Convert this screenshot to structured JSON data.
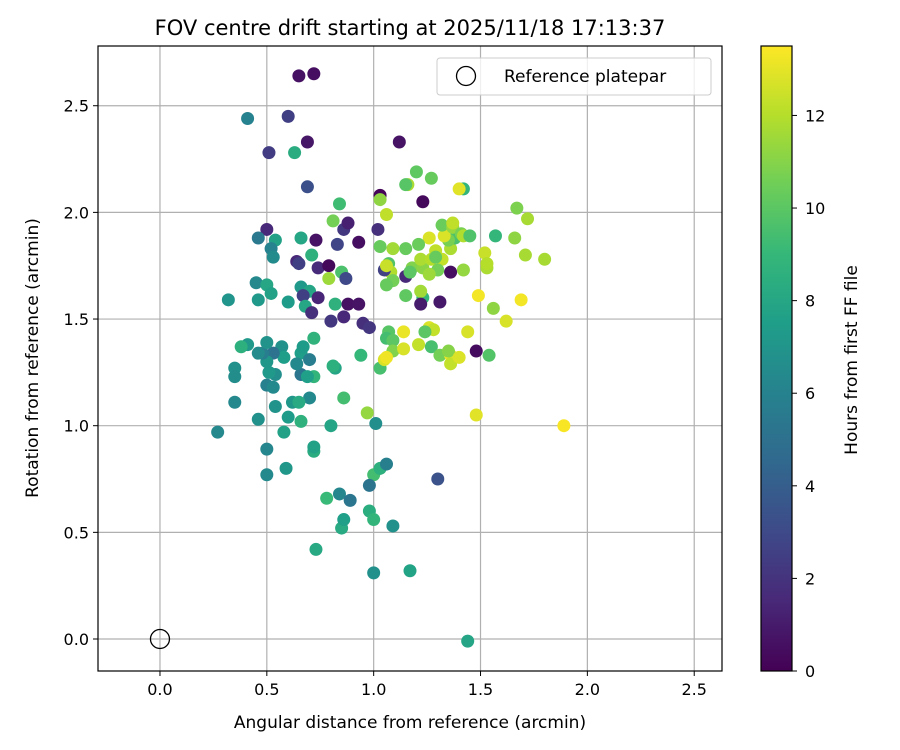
{
  "chart_data": {
    "type": "scatter",
    "title": "FOV centre drift starting at 2025/11/18 17:13:37",
    "xlabel": "Angular distance from reference (arcmin)",
    "ylabel": "Rotation from reference (arcmin)",
    "xlim": [
      -0.29,
      2.63
    ],
    "ylim": [
      -0.15,
      2.78
    ],
    "xticks": [
      0.0,
      0.5,
      1.0,
      1.5,
      2.0,
      2.5
    ],
    "xtick_labels": [
      "0.0",
      "0.5",
      "1.0",
      "1.5",
      "2.0",
      "2.5"
    ],
    "yticks": [
      0.0,
      0.5,
      1.0,
      1.5,
      2.0,
      2.5
    ],
    "ytick_labels": [
      "0.0",
      "0.5",
      "1.0",
      "1.5",
      "2.0",
      "2.5"
    ],
    "grid": true,
    "legend": {
      "placement": "top-right",
      "label": "Reference platepar"
    },
    "reference_point": {
      "x": 0.0,
      "y": 0.0
    },
    "colorbar": {
      "label": "Hours from first FF file",
      "range": [
        0,
        13.5
      ],
      "ticks": [
        0,
        2,
        4,
        6,
        8,
        10,
        12
      ],
      "tick_labels": [
        "0",
        "2",
        "4",
        "6",
        "8",
        "10",
        "12"
      ],
      "colormap": "viridis",
      "colors": [
        "#440154",
        "#482878",
        "#3e4a89",
        "#31688e",
        "#26828e",
        "#1f9e89",
        "#35b779",
        "#6ece58",
        "#b5de2b",
        "#fde725"
      ]
    },
    "points": [
      [
        0.65,
        2.64,
        0.6
      ],
      [
        0.72,
        2.65,
        0.5
      ],
      [
        0.6,
        2.45,
        2.5
      ],
      [
        0.41,
        2.44,
        6.0
      ],
      [
        0.51,
        2.28,
        2.4
      ],
      [
        0.63,
        2.28,
        8.3
      ],
      [
        0.69,
        2.33,
        0.8
      ],
      [
        0.69,
        2.12,
        3.3
      ],
      [
        1.12,
        2.33,
        0.7
      ],
      [
        0.84,
        2.04,
        9.3
      ],
      [
        0.81,
        1.96,
        10.6
      ],
      [
        0.86,
        1.92,
        2.2
      ],
      [
        0.88,
        1.95,
        1.2
      ],
      [
        0.83,
        1.85,
        2.8
      ],
      [
        0.73,
        1.87,
        0.7
      ],
      [
        0.66,
        1.88,
        8.0
      ],
      [
        0.5,
        1.92,
        1.5
      ],
      [
        0.46,
        1.88,
        5.5
      ],
      [
        0.54,
        1.87,
        7.7
      ],
      [
        0.52,
        1.83,
        6.0
      ],
      [
        0.71,
        1.8,
        8.6
      ],
      [
        0.64,
        1.77,
        1.5
      ],
      [
        0.65,
        1.76,
        2.5
      ],
      [
        0.74,
        1.74,
        1.6
      ],
      [
        0.79,
        1.75,
        0.3
      ],
      [
        0.85,
        1.72,
        9.6
      ],
      [
        0.79,
        1.69,
        11.5
      ],
      [
        0.87,
        1.69,
        2.9
      ],
      [
        0.45,
        1.67,
        6.3
      ],
      [
        0.5,
        1.66,
        8.0
      ],
      [
        0.53,
        1.79,
        6.5
      ],
      [
        0.32,
        1.59,
        7.0
      ],
      [
        0.46,
        1.59,
        7.2
      ],
      [
        0.52,
        1.62,
        7.7
      ],
      [
        0.6,
        1.58,
        7.4
      ],
      [
        0.66,
        1.65,
        7.2
      ],
      [
        0.7,
        1.63,
        7.9
      ],
      [
        0.67,
        1.61,
        2.5
      ],
      [
        0.74,
        1.6,
        1.4
      ],
      [
        0.68,
        1.56,
        8.0
      ],
      [
        0.71,
        1.53,
        1.8
      ],
      [
        0.82,
        1.57,
        8.6
      ],
      [
        0.88,
        1.57,
        0.6
      ],
      [
        0.93,
        1.57,
        0.7
      ],
      [
        0.86,
        1.51,
        1.5
      ],
      [
        0.8,
        1.49,
        2.2
      ],
      [
        0.95,
        1.48,
        1.8
      ],
      [
        0.98,
        1.46,
        2.1
      ],
      [
        0.93,
        1.86,
        0.5
      ],
      [
        1.02,
        1.92,
        1.8
      ],
      [
        1.03,
        2.08,
        0.2
      ],
      [
        1.03,
        2.06,
        11.2
      ],
      [
        1.06,
        1.99,
        12.2
      ],
      [
        1.09,
        1.83,
        11.6
      ],
      [
        1.03,
        1.84,
        10.3
      ],
      [
        1.07,
        1.76,
        9.8
      ],
      [
        1.08,
        1.72,
        11.9
      ],
      [
        1.05,
        1.73,
        2.6
      ],
      [
        1.06,
        1.75,
        12.4
      ],
      [
        1.09,
        1.68,
        10.6
      ],
      [
        1.06,
        1.66,
        10.3
      ],
      [
        1.15,
        1.83,
        10.3
      ],
      [
        1.15,
        1.7,
        1.5
      ],
      [
        1.18,
        1.74,
        10.9
      ],
      [
        1.17,
        1.72,
        10.0
      ],
      [
        1.23,
        1.74,
        11.1
      ],
      [
        1.22,
        1.78,
        11.8
      ],
      [
        1.27,
        1.78,
        12.0
      ],
      [
        1.32,
        1.78,
        12.3
      ],
      [
        1.36,
        1.83,
        11.8
      ],
      [
        1.38,
        1.88,
        9.6
      ],
      [
        1.35,
        1.87,
        10.7
      ],
      [
        1.33,
        1.89,
        12.8
      ],
      [
        1.32,
        1.94,
        10.4
      ],
      [
        1.37,
        1.93,
        11.4
      ],
      [
        1.37,
        1.95,
        12.2
      ],
      [
        1.41,
        1.9,
        10.7
      ],
      [
        1.42,
        1.89,
        11.9
      ],
      [
        1.45,
        1.89,
        9.7
      ],
      [
        1.29,
        1.82,
        12.2
      ],
      [
        1.29,
        1.79,
        10.3
      ],
      [
        1.26,
        1.88,
        12.8
      ],
      [
        1.21,
        1.85,
        10.4
      ],
      [
        1.3,
        1.73,
        10.6
      ],
      [
        1.26,
        1.71,
        11.5
      ],
      [
        1.36,
        1.72,
        0.5
      ],
      [
        1.42,
        1.73,
        11.3
      ],
      [
        1.42,
        2.11,
        8.8
      ],
      [
        1.4,
        2.11,
        12.9
      ],
      [
        1.27,
        2.16,
        10.3
      ],
      [
        1.2,
        2.19,
        10.1
      ],
      [
        1.23,
        2.05,
        0.3
      ],
      [
        1.16,
        2.13,
        11.8
      ],
      [
        1.15,
        2.13,
        9.9
      ],
      [
        1.15,
        1.61,
        10.1
      ],
      [
        1.23,
        1.6,
        9.0
      ],
      [
        1.22,
        1.63,
        11.6
      ],
      [
        1.22,
        1.57,
        1.0
      ],
      [
        1.31,
        1.58,
        0.9
      ],
      [
        1.26,
        1.46,
        12.8
      ],
      [
        1.28,
        1.45,
        12.3
      ],
      [
        1.24,
        1.44,
        10.0
      ],
      [
        1.14,
        1.44,
        13.1
      ],
      [
        1.07,
        1.44,
        9.9
      ],
      [
        1.06,
        1.41,
        9.4
      ],
      [
        1.09,
        1.4,
        10.0
      ],
      [
        1.09,
        1.35,
        10.9
      ],
      [
        1.03,
        1.27,
        9.5
      ],
      [
        1.05,
        1.31,
        12.8
      ],
      [
        1.06,
        1.32,
        13.2
      ],
      [
        1.14,
        1.36,
        12.7
      ],
      [
        1.21,
        1.38,
        12.3
      ],
      [
        1.27,
        1.37,
        9.5
      ],
      [
        1.31,
        1.33,
        10.6
      ],
      [
        1.36,
        1.33,
        13.1
      ],
      [
        1.36,
        1.29,
        12.3
      ],
      [
        1.35,
        1.35,
        11.0
      ],
      [
        1.4,
        1.32,
        12.8
      ],
      [
        1.44,
        1.44,
        12.7
      ],
      [
        1.48,
        1.35,
        0.4
      ],
      [
        1.54,
        1.33,
        9.8
      ],
      [
        1.49,
        1.61,
        13.3
      ],
      [
        1.56,
        1.55,
        11.2
      ],
      [
        1.57,
        1.89,
        8.9
      ],
      [
        1.66,
        1.88,
        11.2
      ],
      [
        1.67,
        2.02,
        10.8
      ],
      [
        1.72,
        1.97,
        11.7
      ],
      [
        1.71,
        1.8,
        11.7
      ],
      [
        1.8,
        1.78,
        11.7
      ],
      [
        1.53,
        1.74,
        11.8
      ],
      [
        1.52,
        1.81,
        12.4
      ],
      [
        1.53,
        1.76,
        12.0
      ],
      [
        1.62,
        1.49,
        12.7
      ],
      [
        1.69,
        1.59,
        13.3
      ],
      [
        1.48,
        1.05,
        12.9
      ],
      [
        1.89,
        1.0,
        13.4
      ],
      [
        0.97,
        1.06,
        11.3
      ],
      [
        1.0,
        0.77,
        9.4
      ],
      [
        1.03,
        0.8,
        8.5
      ],
      [
        1.06,
        0.82,
        5.8
      ],
      [
        0.98,
        0.72,
        5.2
      ],
      [
        0.98,
        0.6,
        8.4
      ],
      [
        1.0,
        0.56,
        8.8
      ],
      [
        1.01,
        1.01,
        6.7
      ],
      [
        1.09,
        0.53,
        6.8
      ],
      [
        0.84,
        0.68,
        6.2
      ],
      [
        0.89,
        0.65,
        5.3
      ],
      [
        0.85,
        0.52,
        8.2
      ],
      [
        0.86,
        0.56,
        7.6
      ],
      [
        0.78,
        0.66,
        9.1
      ],
      [
        0.73,
        0.42,
        8.1
      ],
      [
        1.0,
        0.31,
        6.8
      ],
      [
        1.17,
        0.32,
        7.8
      ],
      [
        1.3,
        0.75,
        3.4
      ],
      [
        1.44,
        -0.01,
        7.9
      ],
      [
        0.8,
        1.0,
        7.9
      ],
      [
        0.86,
        1.13,
        9.4
      ],
      [
        0.94,
        1.33,
        9.0
      ],
      [
        0.82,
        1.27,
        7.9
      ],
      [
        0.81,
        1.28,
        8.5
      ],
      [
        0.72,
        0.88,
        8.3
      ],
      [
        0.72,
        0.9,
        7.7
      ],
      [
        0.7,
        1.13,
        6.4
      ],
      [
        0.72,
        1.23,
        8.8
      ],
      [
        0.66,
        1.24,
        5.3
      ],
      [
        0.69,
        1.23,
        7.6
      ],
      [
        0.72,
        1.41,
        8.7
      ],
      [
        0.66,
        1.34,
        7.5
      ],
      [
        0.64,
        1.29,
        6.4
      ],
      [
        0.67,
        1.37,
        7.4
      ],
      [
        0.57,
        1.37,
        6.8
      ],
      [
        0.58,
        1.32,
        7.5
      ],
      [
        0.53,
        1.34,
        5.1
      ],
      [
        0.54,
        1.24,
        6.7
      ],
      [
        0.51,
        1.25,
        7.2
      ],
      [
        0.5,
        1.3,
        7.1
      ],
      [
        0.48,
        1.34,
        5.7
      ],
      [
        0.5,
        1.39,
        6.9
      ],
      [
        0.46,
        1.34,
        6.5
      ],
      [
        0.41,
        1.38,
        7.2
      ],
      [
        0.38,
        1.37,
        8.5
      ],
      [
        0.35,
        1.27,
        6.8
      ],
      [
        0.35,
        1.23,
        6.6
      ],
      [
        0.5,
        1.19,
        5.9
      ],
      [
        0.53,
        1.18,
        6.4
      ],
      [
        0.54,
        1.09,
        6.9
      ],
      [
        0.62,
        1.11,
        7.1
      ],
      [
        0.65,
        1.11,
        8.2
      ],
      [
        0.6,
        1.04,
        7.4
      ],
      [
        0.58,
        0.97,
        7.7
      ],
      [
        0.66,
        1.02,
        8.6
      ],
      [
        0.46,
        1.03,
        6.8
      ],
      [
        0.35,
        1.11,
        6.3
      ],
      [
        0.27,
        0.97,
        6.3
      ],
      [
        0.5,
        0.89,
        6.2
      ],
      [
        0.59,
        0.8,
        7.1
      ],
      [
        0.5,
        0.77,
        6.4
      ],
      [
        0.7,
        1.31,
        5.7
      ]
    ]
  }
}
